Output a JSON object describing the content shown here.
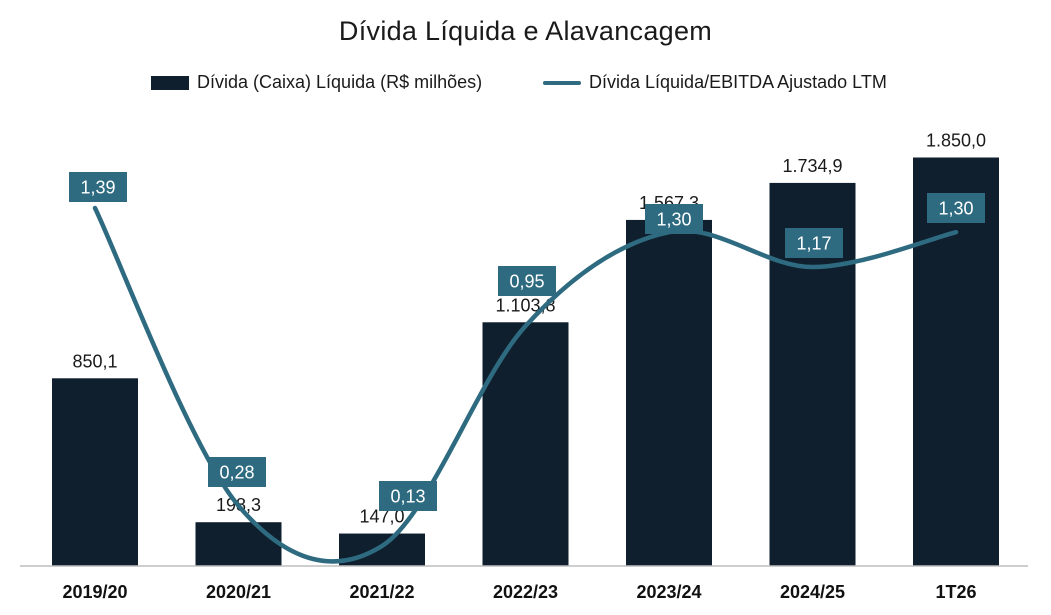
{
  "chart_data": {
    "type": "bar",
    "title": "Dívida Líquida e Alavancagem",
    "categories": [
      "2019/20",
      "2020/21",
      "2021/22",
      "2022/23",
      "2023/24",
      "2024/25",
      "1T26"
    ],
    "series": [
      {
        "name": "Dívida (Caixa) Líquida (R$ milhões)",
        "kind": "bar",
        "values": [
          850.1,
          198.3,
          147.0,
          1103.8,
          1567.3,
          1734.9,
          1850.0
        ],
        "labels": [
          "850,1",
          "198,3",
          "147,0",
          "1.103,8",
          "1.567,3",
          "1.734,9",
          "1.850,0"
        ],
        "color": "#0f1f2e"
      },
      {
        "name": "Dívida Líquida/EBITDA Ajustado LTM",
        "kind": "line",
        "values": [
          1.39,
          0.28,
          0.13,
          0.95,
          1.3,
          1.17,
          1.3
        ],
        "labels": [
          "1,39",
          "0,28",
          "0,13",
          "0,95",
          "1,30",
          "1,17",
          "1,30"
        ],
        "color": "#2e6b80"
      }
    ],
    "xlabel": "",
    "ylabel": "",
    "ylim": [
      0,
      2000
    ],
    "grid": false,
    "legend_position": "top-center"
  }
}
